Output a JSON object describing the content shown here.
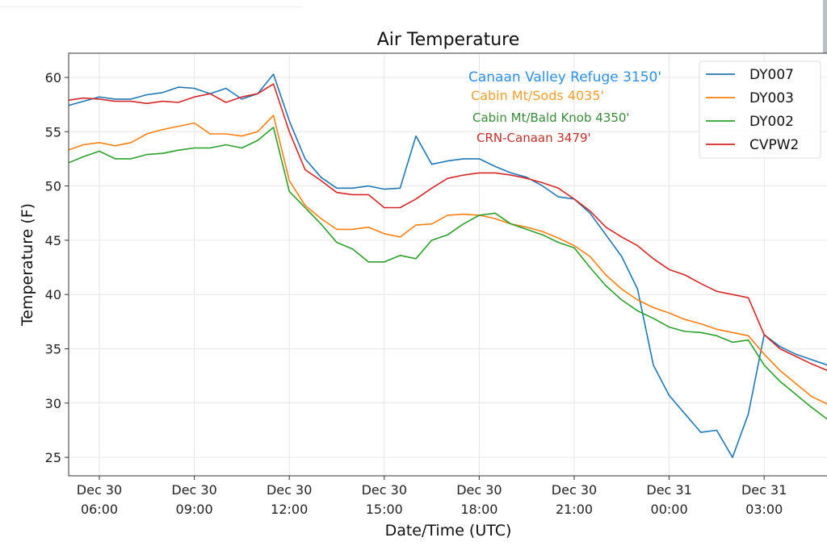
{
  "chart_data": {
    "type": "line",
    "title": "Air Temperature",
    "xlabel": "Date/Time (UTC)",
    "ylabel": "Temperature (F)",
    "ylim": [
      23.3,
      62.2
    ],
    "xlim": [
      "Dec 30 05:00",
      "Dec 31 05:00"
    ],
    "grid": true,
    "legend_placement": "top-right",
    "yticks": [
      "25",
      "30",
      "35",
      "40",
      "45",
      "50",
      "55",
      "60"
    ],
    "xticks": [
      {
        "line1": "Dec 30",
        "line2": "06:00"
      },
      {
        "line1": "Dec 30",
        "line2": "09:00"
      },
      {
        "line1": "Dec 30",
        "line2": "12:00"
      },
      {
        "line1": "Dec 30",
        "line2": "15:00"
      },
      {
        "line1": "Dec 30",
        "line2": "18:00"
      },
      {
        "line1": "Dec 30",
        "line2": "21:00"
      },
      {
        "line1": "Dec 31",
        "line2": "00:00"
      },
      {
        "line1": "Dec 31",
        "line2": "03:00"
      }
    ],
    "x": [
      "Dec 30 05:00",
      "Dec 30 05:30",
      "Dec 30 06:00",
      "Dec 30 06:30",
      "Dec 30 07:00",
      "Dec 30 07:30",
      "Dec 30 08:00",
      "Dec 30 08:30",
      "Dec 30 09:00",
      "Dec 30 09:30",
      "Dec 30 10:00",
      "Dec 30 10:30",
      "Dec 30 11:00",
      "Dec 30 11:30",
      "Dec 30 12:00",
      "Dec 30 12:30",
      "Dec 30 13:00",
      "Dec 30 13:30",
      "Dec 30 14:00",
      "Dec 30 14:30",
      "Dec 30 15:00",
      "Dec 30 15:30",
      "Dec 30 16:00",
      "Dec 30 16:30",
      "Dec 30 17:00",
      "Dec 30 17:30",
      "Dec 30 18:00",
      "Dec 30 18:30",
      "Dec 30 19:00",
      "Dec 30 19:30",
      "Dec 30 20:00",
      "Dec 30 20:30",
      "Dec 30 21:00",
      "Dec 30 21:30",
      "Dec 30 22:00",
      "Dec 30 22:30",
      "Dec 30 23:00",
      "Dec 30 23:30",
      "Dec 31 00:00",
      "Dec 31 00:30",
      "Dec 31 01:00",
      "Dec 31 01:30",
      "Dec 31 02:00",
      "Dec 31 02:30",
      "Dec 31 03:00",
      "Dec 31 03:30",
      "Dec 31 04:00",
      "Dec 31 04:30",
      "Dec 31 05:00"
    ],
    "series": [
      {
        "name": "DY007",
        "color": "#1f77b4",
        "values": [
          57.4,
          57.8,
          58.2,
          58.0,
          58.0,
          58.4,
          58.6,
          59.1,
          59.0,
          58.5,
          59.0,
          58.0,
          58.5,
          60.3,
          56.0,
          52.5,
          50.8,
          49.8,
          49.8,
          50.0,
          49.7,
          49.8,
          54.6,
          52.0,
          52.3,
          52.5,
          52.5,
          51.8,
          51.2,
          50.8,
          50.0,
          49.0,
          48.8,
          47.5,
          45.5,
          43.5,
          40.5,
          33.5,
          30.7,
          29.0,
          27.3,
          27.5,
          25.0,
          29.0,
          36.3,
          35.2,
          34.5,
          34.0,
          33.5
        ]
      },
      {
        "name": "DY003",
        "color": "#ff7f0e",
        "values": [
          53.3,
          53.8,
          54.0,
          53.7,
          54.0,
          54.8,
          55.2,
          55.5,
          55.8,
          54.8,
          54.8,
          54.6,
          55.0,
          56.5,
          50.5,
          48.2,
          47.0,
          46.0,
          46.0,
          46.2,
          45.6,
          45.3,
          46.4,
          46.5,
          47.3,
          47.4,
          47.3,
          47.0,
          46.5,
          46.2,
          45.8,
          45.2,
          44.5,
          43.5,
          41.8,
          40.5,
          39.5,
          38.8,
          38.3,
          37.7,
          37.3,
          36.8,
          36.5,
          36.2,
          34.5,
          33.0,
          31.8,
          30.6,
          29.9
        ]
      },
      {
        "name": "DY002",
        "color": "#2ca02c",
        "values": [
          52.1,
          52.7,
          53.2,
          52.5,
          52.5,
          52.9,
          53.0,
          53.3,
          53.5,
          53.5,
          53.8,
          53.5,
          54.2,
          55.4,
          49.5,
          48.0,
          46.5,
          44.8,
          44.2,
          43.0,
          43.0,
          43.6,
          43.3,
          45.0,
          45.5,
          46.5,
          47.3,
          47.5,
          46.5,
          46.0,
          45.5,
          44.8,
          44.3,
          42.5,
          40.8,
          39.5,
          38.5,
          37.8,
          37.0,
          36.6,
          36.5,
          36.2,
          35.6,
          35.8,
          33.5,
          32.0,
          30.8,
          29.6,
          28.5
        ]
      },
      {
        "name": "CVPW2",
        "color": "#d62728",
        "values": [
          57.9,
          58.1,
          58.0,
          57.8,
          57.8,
          57.6,
          57.8,
          57.7,
          58.2,
          58.5,
          57.7,
          58.2,
          58.5,
          59.4,
          55.0,
          51.5,
          50.5,
          49.4,
          49.2,
          49.2,
          48.0,
          48.0,
          48.8,
          49.8,
          50.7,
          51.0,
          51.2,
          51.2,
          51.0,
          50.7,
          50.3,
          49.8,
          48.8,
          47.7,
          46.2,
          45.3,
          44.5,
          43.3,
          42.3,
          41.8,
          41.0,
          40.3,
          40.0,
          39.7,
          36.3,
          35.0,
          34.3,
          33.6,
          33.0
        ]
      }
    ],
    "annotations": [
      {
        "text": "Canaan Valley Refuge 3150'",
        "color": "#2f8fe8"
      },
      {
        "text": "Cabin Mt/Sods 4035'",
        "color": "#f0a030"
      },
      {
        "text": "Cabin Mt/Bald Knob 4350'",
        "color": "#3a8a3a"
      },
      {
        "text": "CRN-Canaan 3479'",
        "color": "#c0302a"
      }
    ]
  }
}
